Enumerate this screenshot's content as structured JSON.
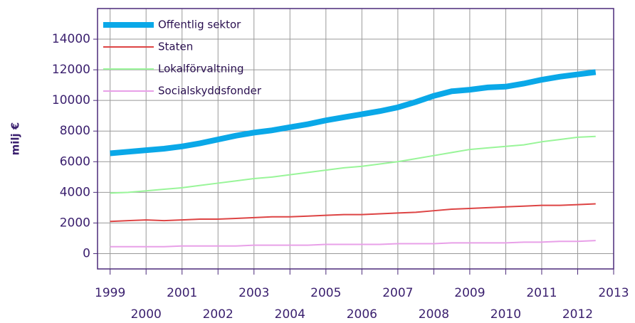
{
  "chart_data": {
    "type": "line",
    "y_label": "milj €",
    "x": [
      1999,
      1999.5,
      2000,
      2000.5,
      2001,
      2001.5,
      2002,
      2002.5,
      2003,
      2003.5,
      2004,
      2004.5,
      2005,
      2005.5,
      2006,
      2006.5,
      2007,
      2007.5,
      2008,
      2008.5,
      2009,
      2009.5,
      2010,
      2010.5,
      2011,
      2011.5,
      2012,
      2012.5
    ],
    "series": [
      {
        "name": "Offentlig sektor",
        "color": "#0aa8e8",
        "width": 8,
        "values": [
          6550,
          6650,
          6750,
          6850,
          7000,
          7200,
          7450,
          7700,
          7900,
          8050,
          8250,
          8450,
          8700,
          8900,
          9100,
          9300,
          9550,
          9900,
          10300,
          10600,
          10700,
          10850,
          10900,
          11100,
          11350,
          11550,
          11700,
          11850
        ]
      },
      {
        "name": "Staten",
        "color": "#dd4444",
        "width": 2,
        "values": [
          2100,
          2150,
          2200,
          2150,
          2200,
          2250,
          2250,
          2300,
          2350,
          2400,
          2400,
          2450,
          2500,
          2550,
          2550,
          2600,
          2650,
          2700,
          2800,
          2900,
          2950,
          3000,
          3050,
          3100,
          3150,
          3150,
          3200,
          3250
        ]
      },
      {
        "name": "Lokalförvaltning",
        "color": "#99f599",
        "width": 2,
        "values": [
          3950,
          4000,
          4100,
          4200,
          4300,
          4450,
          4600,
          4750,
          4900,
          5000,
          5150,
          5300,
          5450,
          5600,
          5700,
          5850,
          6000,
          6200,
          6400,
          6600,
          6800,
          6900,
          7000,
          7100,
          7300,
          7450,
          7600,
          7650
        ]
      },
      {
        "name": "Socialskyddsfonder",
        "color": "#e8a0e8",
        "width": 2,
        "values": [
          450,
          450,
          450,
          450,
          500,
          500,
          500,
          500,
          550,
          550,
          550,
          550,
          600,
          600,
          600,
          600,
          650,
          650,
          650,
          700,
          700,
          700,
          700,
          750,
          750,
          800,
          800,
          850
        ]
      }
    ],
    "xlim": [
      1998.65,
      2013
    ],
    "xticks": [
      1999,
      2000,
      2001,
      2002,
      2003,
      2004,
      2005,
      2006,
      2007,
      2008,
      2009,
      2010,
      2011,
      2012,
      2013
    ],
    "ylim": [
      -1000,
      16000
    ],
    "yticks": [
      0,
      2000,
      4000,
      6000,
      8000,
      10000,
      12000,
      14000
    ],
    "grid": true,
    "legend": "top-left"
  }
}
